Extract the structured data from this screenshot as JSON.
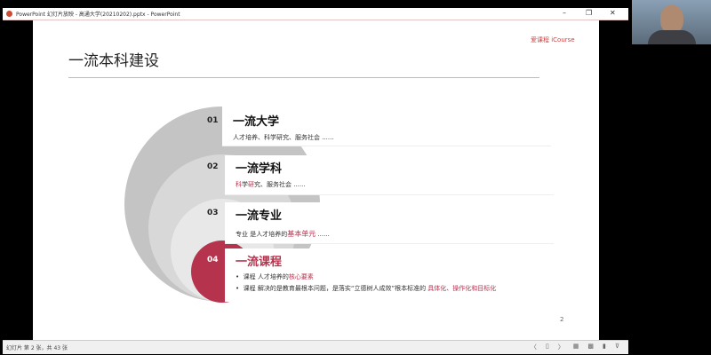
{
  "window": {
    "title": "PowerPoint 幻灯片放映 - 高通大学(20210202).pptx - PowerPoint",
    "minimize": "–",
    "restore": "❐",
    "close": "✕"
  },
  "slide": {
    "title": "一流本科建设",
    "logo_text": "爱课程 iCourse",
    "page_number": "2",
    "items": [
      {
        "num": "01",
        "heading": "一流大学",
        "sub": "人才培养、科学研究、服务社会 ......"
      },
      {
        "num": "02",
        "heading": "一流学科",
        "sub_red1": "科",
        "sub_plain1": "学",
        "sub_red2": "研",
        "sub_plain2": "究、服务社会 ......"
      },
      {
        "num": "03",
        "heading": "一流专业",
        "sub_plain": "专业 是人才培养的",
        "sub_red": "基本单元",
        "sub_tail": " ......"
      },
      {
        "num": "04",
        "heading": "一流课程",
        "bullets": [
          {
            "plain": "课程 人才培养的",
            "red": "核心要素"
          },
          {
            "plain": "课程 解决的是教育最根本问题，是落实“立德树人成效”根本标准的 ",
            "red": "具体化、操作化和目标化"
          }
        ]
      }
    ],
    "colors": {
      "accent": "#b5334d",
      "band1": "#c4c4c4",
      "band2": "#d8d8d8",
      "band3": "#e8e8e8"
    }
  },
  "status": {
    "slide_info": "幻灯片 第 2 张，共 43 张",
    "prev": "〈",
    "next": "〉"
  }
}
